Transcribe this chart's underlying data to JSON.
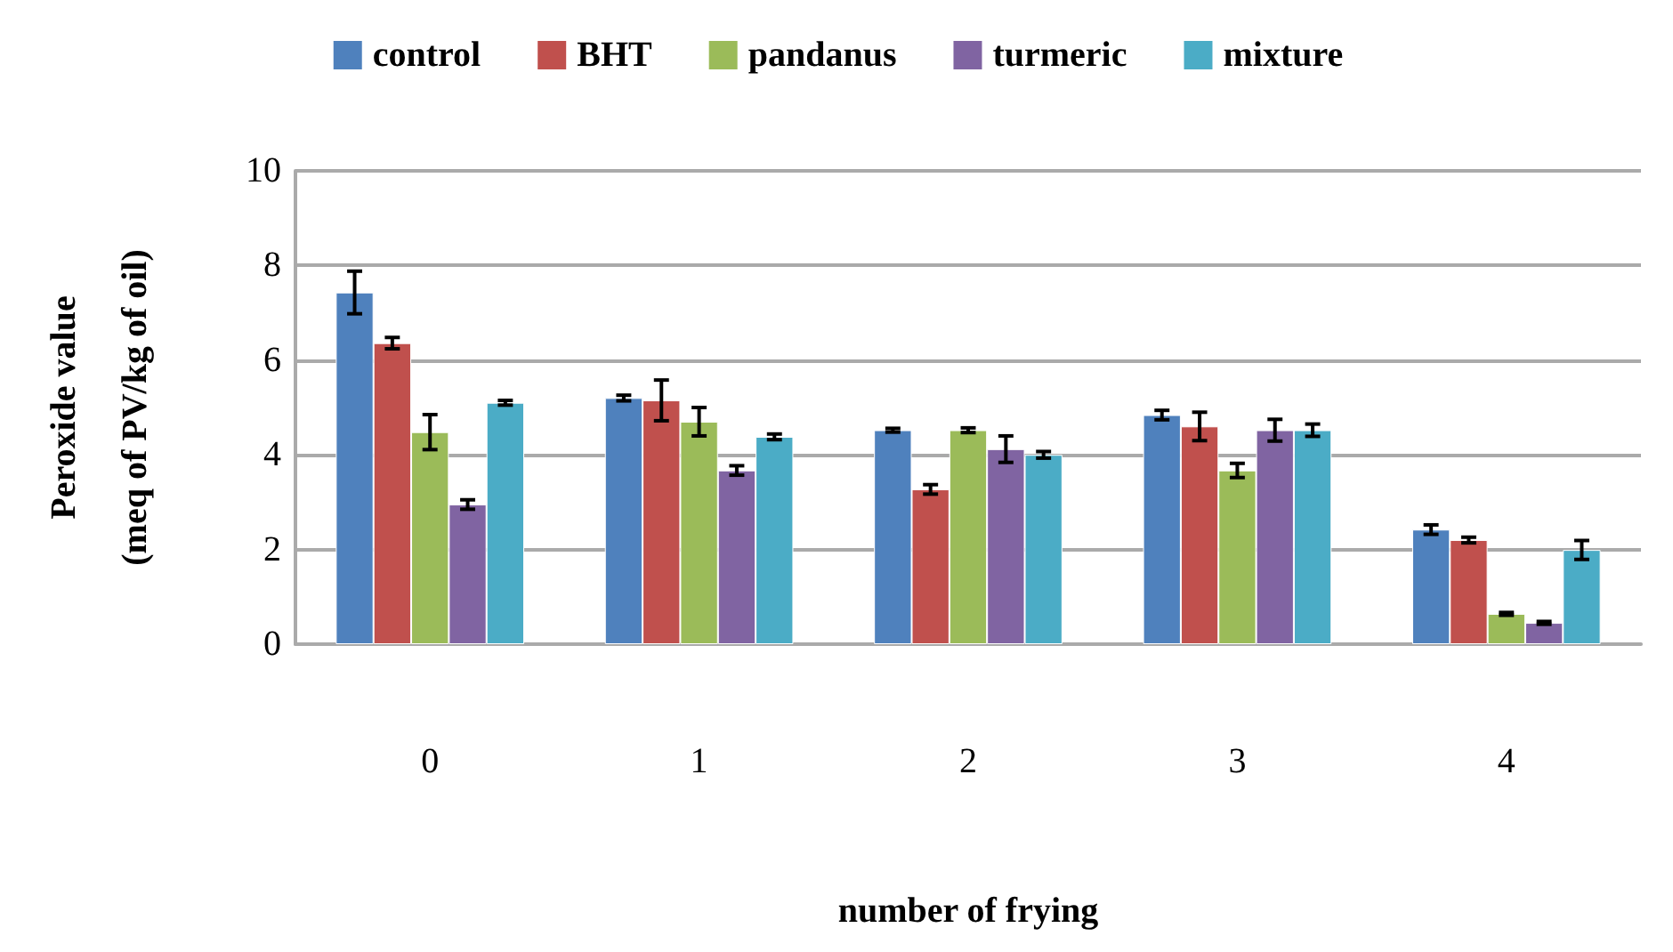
{
  "chart_data": {
    "type": "bar",
    "xlabel": "number of frying",
    "ylabel": "Peroxide value\n(meq of PV/kg of oil)",
    "categories": [
      "0",
      "1",
      "2",
      "3",
      "4"
    ],
    "series": [
      {
        "name": "control",
        "color": "#4f81bd",
        "values": [
          7.43,
          5.2,
          4.52,
          4.84,
          2.42
        ],
        "errors": [
          0.45,
          0.06,
          0.04,
          0.1,
          0.1
        ]
      },
      {
        "name": "BHT",
        "color": "#c0504d",
        "values": [
          6.36,
          5.15,
          3.27,
          4.6,
          2.2
        ],
        "errors": [
          0.12,
          0.43,
          0.1,
          0.3,
          0.06
        ]
      },
      {
        "name": "pandanus",
        "color": "#9bbb59",
        "values": [
          4.48,
          4.7,
          4.52,
          3.67,
          0.64
        ],
        "errors": [
          0.37,
          0.3,
          0.05,
          0.15,
          0.03
        ]
      },
      {
        "name": "turmeric",
        "color": "#8064a2",
        "values": [
          2.95,
          3.67,
          4.12,
          4.52,
          0.45
        ],
        "errors": [
          0.1,
          0.1,
          0.28,
          0.23,
          0.03
        ]
      },
      {
        "name": "mixture",
        "color": "#4bacc6",
        "values": [
          5.1,
          4.38,
          4.0,
          4.52,
          1.99
        ],
        "errors": [
          0.05,
          0.06,
          0.07,
          0.13,
          0.2
        ]
      }
    ],
    "ylim": [
      0,
      10
    ],
    "yticks": [
      0,
      2,
      4,
      6,
      8,
      10
    ],
    "grid": "y",
    "legend": "top"
  }
}
